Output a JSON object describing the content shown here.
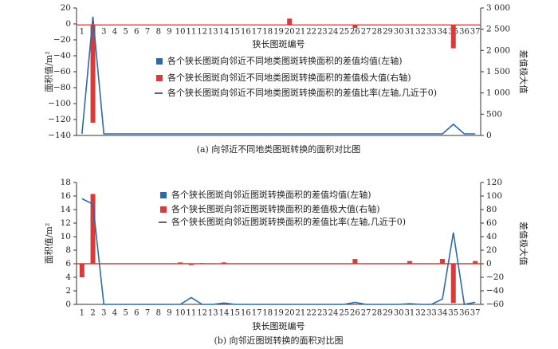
{
  "chart_data": [
    {
      "type": "bar",
      "caption": "(a) 向邻近不同地类图斑转换的面积对比图",
      "xlabel": "狭长图斑编号",
      "ylabel": "面积值/m²",
      "y2label": "差值极大值",
      "categories": [
        "1",
        "2",
        "3",
        "4",
        "5",
        "6",
        "7",
        "8",
        "9",
        "10",
        "11",
        "12",
        "13",
        "14",
        "15",
        "16",
        "17",
        "18",
        "19",
        "20",
        "21",
        "22",
        "23",
        "24",
        "25",
        "26",
        "27",
        "28",
        "29",
        "30",
        "31",
        "32",
        "33",
        "34",
        "35",
        "36",
        "37"
      ],
      "ylim": [
        -140,
        20
      ],
      "yticks": [
        -140,
        -120,
        -100,
        -80,
        -60,
        -40,
        -20,
        0,
        20
      ],
      "y2lim": [
        0,
        3000
      ],
      "y2ticks": [
        0,
        500,
        1000,
        1500,
        2000,
        2500,
        3000
      ],
      "y2tick_labels": [
        "0",
        "500",
        "1 000",
        "1 500",
        "2 000",
        "2 500",
        "3 000"
      ],
      "y2_zero": 2600,
      "legend_position": "center",
      "grid": false,
      "series": [
        {
          "name": "各个狭长图斑向邻近不同地类图斑转换面积的差值均值(左轴)",
          "type": "line",
          "axis": "left",
          "color": "#2e6aa8",
          "values": [
            -138,
            9,
            -138,
            -138,
            -138,
            -138,
            -138,
            -138,
            -138,
            -138,
            -138,
            -138,
            -138,
            -138,
            -138,
            -138,
            -138,
            -138,
            -138,
            -138,
            -138,
            -138,
            -138,
            -138,
            -138,
            -138,
            -138,
            -138,
            -138,
            -138,
            -138,
            -138,
            -138,
            -138,
            -126,
            -138,
            -138
          ]
        },
        {
          "name": "各个狭长图斑向邻近不同地类图斑转换面积的差值极大值(右轴)",
          "type": "bar",
          "axis": "right",
          "color": "#d93a3a",
          "values": [
            2600,
            300,
            2600,
            2600,
            2600,
            2600,
            2600,
            2600,
            2600,
            2600,
            2600,
            2600,
            2600,
            2600,
            2600,
            2600,
            2600,
            2600,
            2600,
            2750,
            2600,
            2600,
            2600,
            2600,
            2600,
            2530,
            2600,
            2600,
            2600,
            2600,
            2600,
            2600,
            2600,
            2600,
            2050,
            2600,
            2600
          ]
        },
        {
          "name": "各个狭长图斑向邻近不同地类图斑转换面积的差值比率(左轴,几近于0)",
          "type": "line",
          "axis": "left",
          "color": "#222222",
          "values": [
            0,
            0,
            0,
            0,
            0,
            0,
            0,
            0,
            0,
            0,
            0,
            0,
            0,
            0,
            0,
            0,
            0,
            0,
            0,
            0,
            0,
            0,
            0,
            0,
            0,
            0,
            0,
            0,
            0,
            0,
            0,
            0,
            0,
            0,
            0,
            0,
            0
          ]
        }
      ]
    },
    {
      "type": "bar",
      "caption": "(b) 向邻近图斑转换的面积对比图",
      "xlabel": "狭长图斑编号",
      "ylabel": "面积值/m²",
      "y2label": "差值极大值",
      "categories": [
        "1",
        "2",
        "3",
        "4",
        "5",
        "6",
        "7",
        "8",
        "9",
        "10",
        "11",
        "12",
        "13",
        "14",
        "15",
        "16",
        "17",
        "18",
        "19",
        "20",
        "21",
        "22",
        "23",
        "24",
        "25",
        "26",
        "27",
        "28",
        "29",
        "30",
        "31",
        "32",
        "33",
        "34",
        "35",
        "36",
        "37"
      ],
      "ylim": [
        0,
        18
      ],
      "yticks": [
        0,
        2,
        4,
        6,
        8,
        10,
        12,
        14,
        16,
        18
      ],
      "y2lim": [
        -60,
        120
      ],
      "y2ticks": [
        -60,
        -40,
        -20,
        0,
        20,
        40,
        60,
        80,
        100,
        120
      ],
      "y2tick_labels": [
        "−60",
        "−40",
        "−20",
        "0",
        "20",
        "40",
        "60",
        "80",
        "100",
        "120"
      ],
      "y2_zero": 0,
      "legend_position": "center",
      "grid": false,
      "series": [
        {
          "name": "各个狭长图斑向邻近图斑转换面积的差值均值(左轴)",
          "type": "line",
          "axis": "left",
          "color": "#2e6aa8",
          "values": [
            15.6,
            14.8,
            0,
            0,
            0,
            0,
            0,
            0,
            0,
            0,
            1.0,
            0,
            0,
            0.2,
            0,
            0,
            0,
            0,
            0,
            0,
            0,
            0,
            0,
            0,
            0,
            0.3,
            0,
            0,
            0,
            0,
            0.1,
            0,
            0,
            0.8,
            10.6,
            0,
            0.3
          ]
        },
        {
          "name": "各个狭长图斑向邻近图斑转换面积的差值极大值(右轴)",
          "type": "bar",
          "axis": "right",
          "color": "#d93a3a",
          "values": [
            -20,
            103,
            0,
            0,
            0,
            0,
            0,
            0,
            0,
            2,
            -2,
            1,
            0,
            2,
            0,
            0,
            0,
            0,
            0,
            0,
            0,
            0,
            0,
            0,
            0,
            7,
            0,
            0,
            0,
            0,
            4,
            0,
            0,
            7,
            -58,
            0,
            4
          ]
        },
        {
          "name": "各个狭长图斑向邻近图斑转换面积的差值比率(左轴,几近于0)",
          "type": "line",
          "axis": "left",
          "color": "#222222",
          "values": [
            0,
            0,
            0,
            0,
            0,
            0,
            0,
            0,
            0,
            0,
            0,
            0,
            0,
            0,
            0,
            0,
            0,
            0,
            0,
            0,
            0,
            0,
            0,
            0,
            0,
            0,
            0,
            0,
            0,
            0,
            0,
            0,
            0,
            0,
            0,
            0,
            0
          ]
        }
      ]
    }
  ]
}
